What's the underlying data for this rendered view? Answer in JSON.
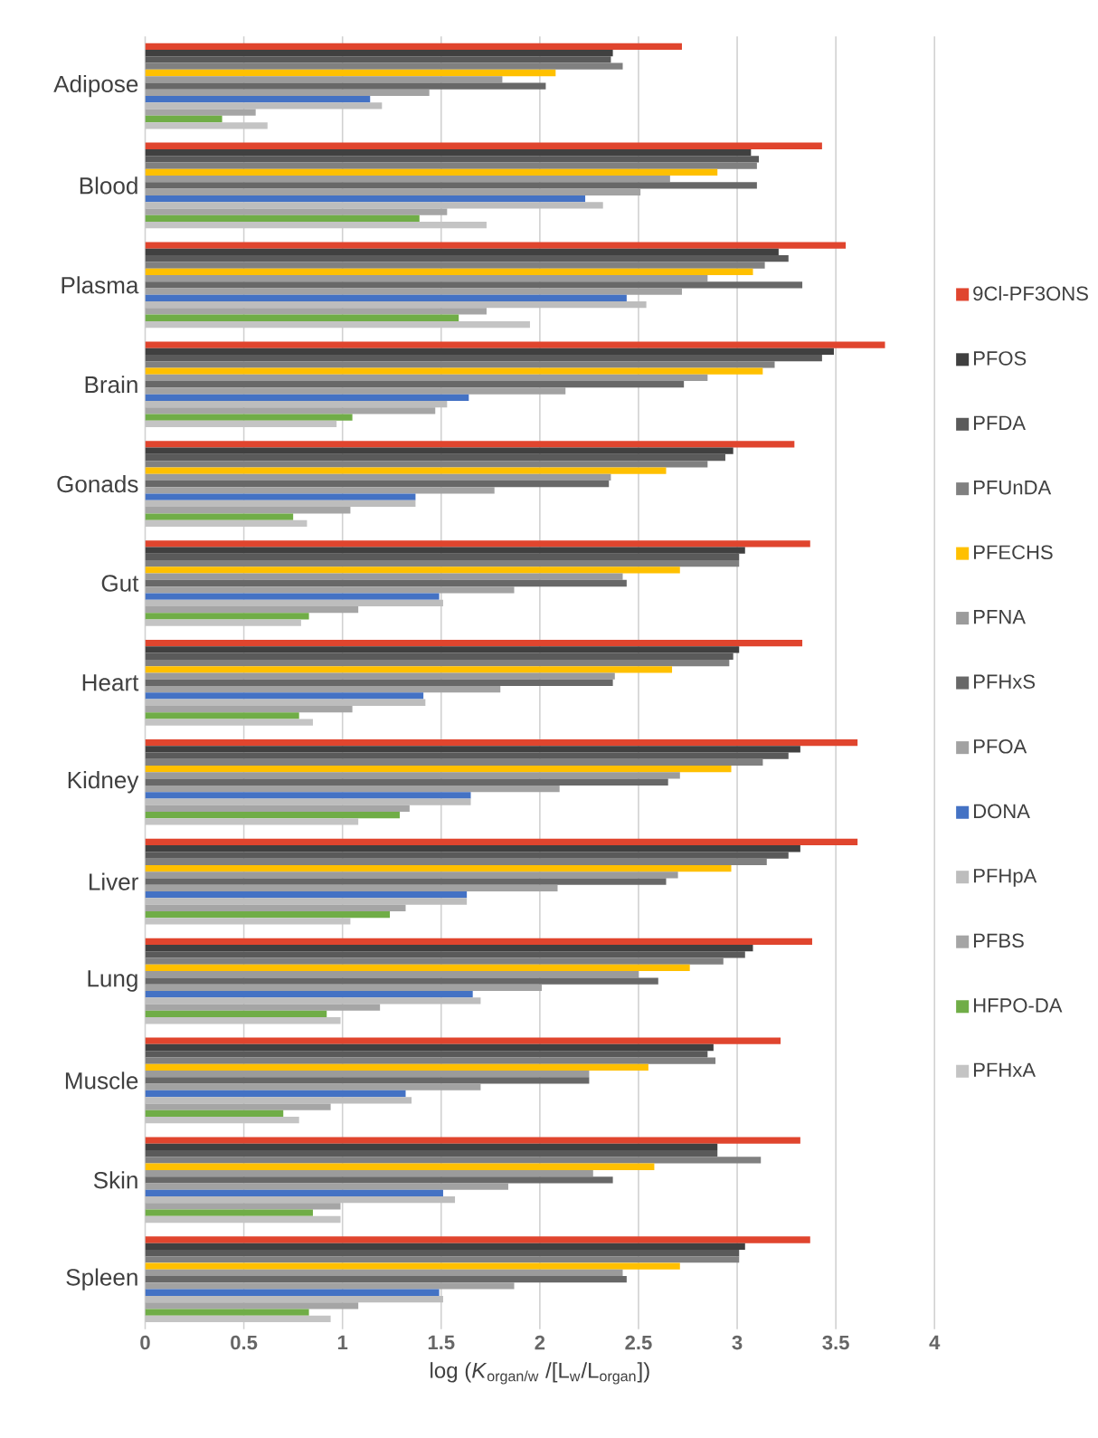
{
  "chart_data": {
    "type": "bar",
    "orientation": "horizontal",
    "xlabel": "log (*K*$_{organ/w}$ /[L$_{w}$/L$_{organ}$])",
    "categories": [
      "Adipose",
      "Blood",
      "Plasma",
      "Brain",
      "Gonads",
      "Gut",
      "Heart",
      "Kidney",
      "Liver",
      "Lung",
      "Muscle",
      "Skin",
      "Spleen"
    ],
    "series": [
      {
        "name": "9Cl-PF3ONS",
        "color": "#e0452e",
        "values": [
          2.72,
          3.43,
          3.55,
          3.75,
          3.29,
          3.37,
          3.33,
          3.61,
          3.61,
          3.38,
          3.22,
          3.32,
          3.37
        ]
      },
      {
        "name": "PFOS",
        "color": "#404040",
        "values": [
          2.37,
          3.07,
          3.21,
          3.49,
          2.98,
          3.04,
          3.01,
          3.32,
          3.32,
          3.08,
          2.88,
          2.9,
          3.04
        ]
      },
      {
        "name": "PFDA",
        "color": "#5a5a5a",
        "values": [
          2.36,
          3.11,
          3.26,
          3.43,
          2.94,
          3.01,
          2.98,
          3.26,
          3.26,
          3.04,
          2.85,
          2.9,
          3.01
        ]
      },
      {
        "name": "PFUnDA",
        "color": "#808080",
        "values": [
          2.42,
          3.1,
          3.14,
          3.19,
          2.85,
          3.01,
          2.96,
          3.13,
          3.15,
          2.93,
          2.89,
          3.12,
          3.01
        ]
      },
      {
        "name": "PFECHS",
        "color": "#ffc000",
        "values": [
          2.08,
          2.9,
          3.08,
          3.13,
          2.64,
          2.71,
          2.67,
          2.97,
          2.97,
          2.76,
          2.55,
          2.58,
          2.71
        ]
      },
      {
        "name": "PFNA",
        "color": "#9b9b9b",
        "values": [
          1.81,
          2.66,
          2.85,
          2.85,
          2.36,
          2.42,
          2.38,
          2.71,
          2.7,
          2.5,
          2.25,
          2.27,
          2.42
        ]
      },
      {
        "name": "PFHxS",
        "color": "#686868",
        "values": [
          2.03,
          3.1,
          3.33,
          2.73,
          2.35,
          2.44,
          2.37,
          2.65,
          2.64,
          2.6,
          2.25,
          2.37,
          2.44
        ]
      },
      {
        "name": "PFOA",
        "color": "#a2a2a2",
        "values": [
          1.44,
          2.51,
          2.72,
          2.13,
          1.77,
          1.87,
          1.8,
          2.1,
          2.09,
          2.01,
          1.7,
          1.84,
          1.87
        ]
      },
      {
        "name": "DONA",
        "color": "#4472c4",
        "values": [
          1.14,
          2.23,
          2.44,
          1.64,
          1.37,
          1.49,
          1.41,
          1.65,
          1.63,
          1.66,
          1.32,
          1.51,
          1.49
        ]
      },
      {
        "name": "PFHpA",
        "color": "#bdbdbd",
        "values": [
          1.2,
          2.32,
          2.54,
          1.53,
          1.37,
          1.51,
          1.42,
          1.65,
          1.63,
          1.7,
          1.35,
          1.57,
          1.51
        ]
      },
      {
        "name": "PFBS",
        "color": "#a5a5a5",
        "values": [
          0.56,
          1.53,
          1.73,
          1.47,
          1.04,
          1.08,
          1.05,
          1.34,
          1.32,
          1.19,
          0.94,
          0.99,
          1.08
        ]
      },
      {
        "name": "HFPO-DA",
        "color": "#70ad47",
        "values": [
          0.39,
          1.39,
          1.59,
          1.05,
          0.75,
          0.83,
          0.78,
          1.29,
          1.24,
          0.92,
          0.7,
          0.85,
          0.83
        ]
      },
      {
        "name": "PFHxA",
        "color": "#c4c4c4",
        "values": [
          0.62,
          1.73,
          1.95,
          0.97,
          0.82,
          0.79,
          0.85,
          1.08,
          1.04,
          0.99,
          0.78,
          0.99,
          0.94
        ]
      }
    ],
    "xlim": [
      0,
      4
    ],
    "xticks": [
      0,
      0.5,
      1,
      1.5,
      2,
      2.5,
      3,
      3.5,
      4
    ],
    "grid": "x",
    "legend": "right"
  }
}
